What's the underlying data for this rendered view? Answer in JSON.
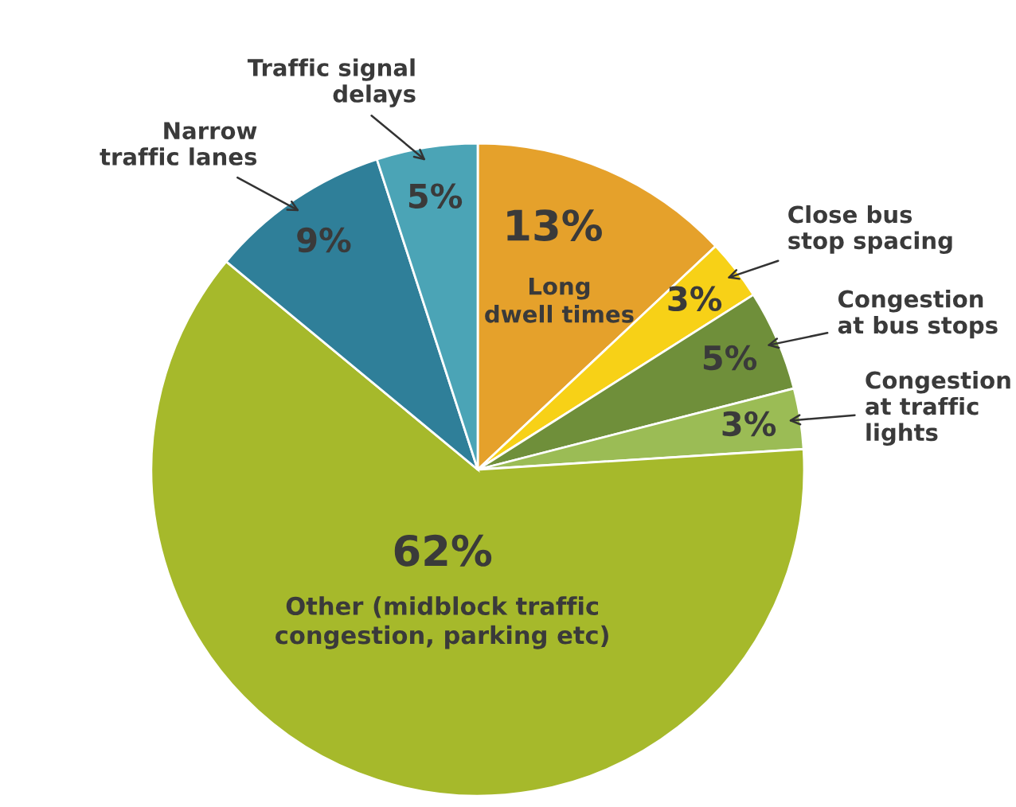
{
  "chart_data": {
    "type": "pie",
    "categories": [
      "Long\ndwell times",
      "Close bus\nstop spacing",
      "Congestion\nat bus stops",
      "Congestion\nat traffic\nlights",
      "Other (midblock traffic\ncongestion, parking etc)",
      "Narrow\ntraffic lanes",
      "Traffic signal\ndelays"
    ],
    "values": [
      13,
      3,
      5,
      3,
      62,
      9,
      5
    ],
    "colors": [
      "#e5a12b",
      "#f7d117",
      "#6f8f3a",
      "#9bbc55",
      "#a6b92b",
      "#2f7f99",
      "#4ba4b6"
    ],
    "value_labels": [
      "13%",
      "3%",
      "5%",
      "3%",
      "62%",
      "9%",
      "5%"
    ],
    "legend": false
  }
}
